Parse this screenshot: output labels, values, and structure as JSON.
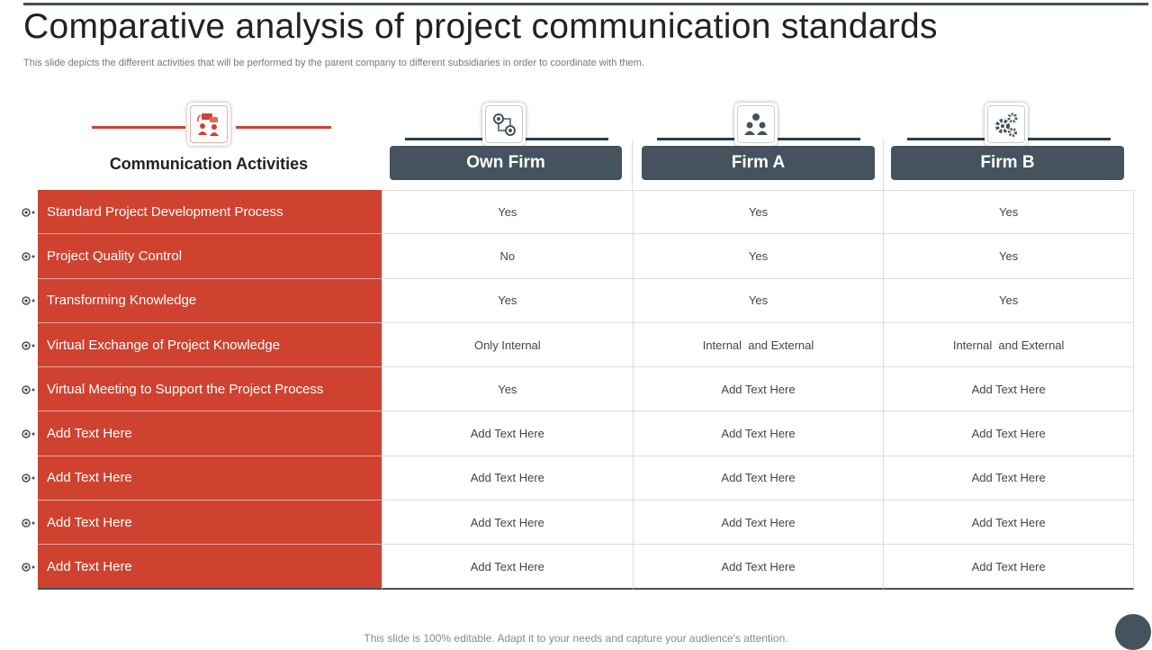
{
  "slide": {
    "title": "Comparative analysis of project communication standards",
    "subtitle": "This slide depicts the different activities that will be performed by the parent company to different subsidiaries in order to coordinate with them.",
    "footer": "This slide is 100% editable. Adapt it to your needs and capture your audience's attention."
  },
  "header": {
    "activities_title": "Communication Activities",
    "columns": [
      "Own Firm",
      "Firm A",
      "Firm B"
    ]
  },
  "colors": {
    "accent": "#cf4230",
    "dark": "#44535e"
  },
  "icons": [
    "communication-icon",
    "network-icon",
    "team-icon",
    "gears-icon"
  ],
  "rows": [
    {
      "activity": "Standard Project Development Process",
      "values": [
        "Yes",
        "Yes",
        "Yes"
      ]
    },
    {
      "activity": "Project Quality Control",
      "values": [
        "No",
        "Yes",
        "Yes"
      ]
    },
    {
      "activity": "Transforming Knowledge",
      "values": [
        "Yes",
        "Yes",
        "Yes"
      ]
    },
    {
      "activity": "Virtual Exchange of Project Knowledge",
      "values": [
        "Only Internal",
        "Internal  and External",
        "Internal  and External"
      ]
    },
    {
      "activity": "Virtual Meeting to Support the Project Process",
      "values": [
        "Yes",
        "Add Text Here",
        "Add Text Here"
      ]
    },
    {
      "activity": "Add Text Here",
      "values": [
        "Add Text Here",
        "Add Text Here",
        "Add Text Here"
      ]
    },
    {
      "activity": "Add Text Here",
      "values": [
        "Add Text Here",
        "Add Text Here",
        "Add Text Here"
      ]
    },
    {
      "activity": "Add Text Here",
      "values": [
        "Add Text Here",
        "Add Text Here",
        "Add Text Here"
      ]
    },
    {
      "activity": "Add Text Here",
      "values": [
        "Add Text Here",
        "Add Text Here",
        "Add Text Here"
      ]
    }
  ]
}
